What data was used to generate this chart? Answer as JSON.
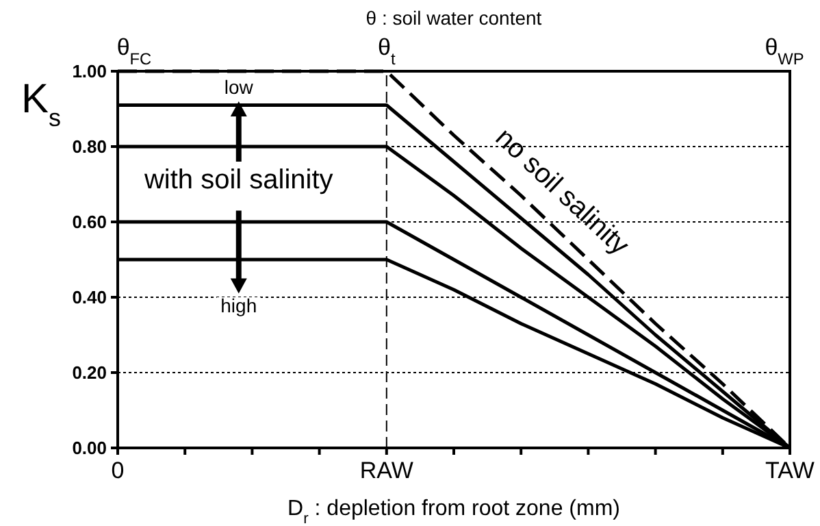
{
  "chart_data": {
    "type": "line",
    "x2label": "θ  : soil water content",
    "xlabel": "D$_{r}$ : depletion from root zone (mm)",
    "ylabel": "K$_{s}$",
    "categories": [
      "0",
      null,
      null,
      null,
      "RAW",
      null,
      null,
      null,
      null,
      null,
      "TAW"
    ],
    "ylim": [
      0,
      1
    ],
    "yticks": [
      {
        "value": 0,
        "label": "0.00"
      },
      {
        "value": 0.2,
        "label": "0.20"
      },
      {
        "value": 0.4,
        "label": "0.40"
      },
      {
        "value": 0.6,
        "label": "0.60"
      },
      {
        "value": 0.8,
        "label": "0.80"
      },
      {
        "value": 1,
        "label": "1.00"
      }
    ],
    "grid": "y",
    "marker": "none",
    "series": [
      {
        "name": "no soil salinity",
        "color": "#000000",
        "line_style": "dashed",
        "values": [
          1,
          1,
          1,
          1,
          1,
          0.83,
          0.67,
          0.5,
          0.33,
          0.17,
          0
        ]
      },
      {
        "color": "#000000",
        "line_style": "solid",
        "values": [
          0.91,
          0.91,
          0.91,
          0.91,
          0.91,
          0.76,
          0.61,
          0.46,
          0.3,
          0.15,
          0
        ]
      },
      {
        "color": "#000000",
        "line_style": "solid",
        "values": [
          0.8,
          0.8,
          0.8,
          0.8,
          0.8,
          0.67,
          0.53,
          0.4,
          0.27,
          0.13,
          0
        ]
      },
      {
        "color": "#000000",
        "line_style": "solid",
        "values": [
          0.6,
          0.6,
          0.6,
          0.6,
          0.6,
          0.5,
          0.4,
          0.3,
          0.2,
          0.1,
          0
        ]
      },
      {
        "color": "#000000",
        "line_style": "solid",
        "values": [
          0.5,
          0.5,
          0.5,
          0.5,
          0.5,
          0.42,
          0.33,
          0.25,
          0.17,
          0.08,
          0
        ]
      }
    ],
    "ref_lines": [
      {
        "axis": "x",
        "value": "RAW",
        "line_style": "dashed",
        "color": "#000000"
      }
    ],
    "annotations": [
      "θ$_{FC}$",
      "θ$_{t}$",
      "θ$_{WP}$",
      "with soil salinity",
      "low",
      "high"
    ]
  }
}
